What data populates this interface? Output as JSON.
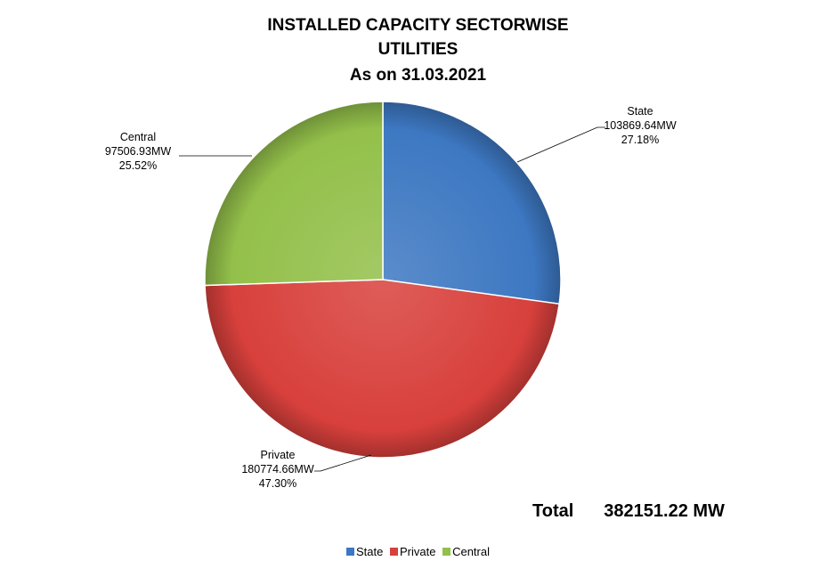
{
  "chart_data": {
    "type": "pie",
    "title": "INSTALLED CAPACITY SECTORWISE",
    "subtitle": "UTILITIES",
    "date_line": "As on 31.03.2021",
    "slices": [
      {
        "name": "State",
        "value": 103869.64,
        "value_label": "103869.64MW",
        "percent_label": "27.18%",
        "color": "#3d78c2"
      },
      {
        "name": "Private",
        "value": 180774.66,
        "value_label": "180774.66MW",
        "percent_label": "47.30%",
        "color": "#d8403c"
      },
      {
        "name": "Central",
        "value": 97506.93,
        "value_label": "97506.93MW",
        "percent_label": "25.52%",
        "color": "#93c04a"
      }
    ],
    "legend_placement": "bottom",
    "total_label": "Total",
    "total_value": "382151.22 MW"
  }
}
